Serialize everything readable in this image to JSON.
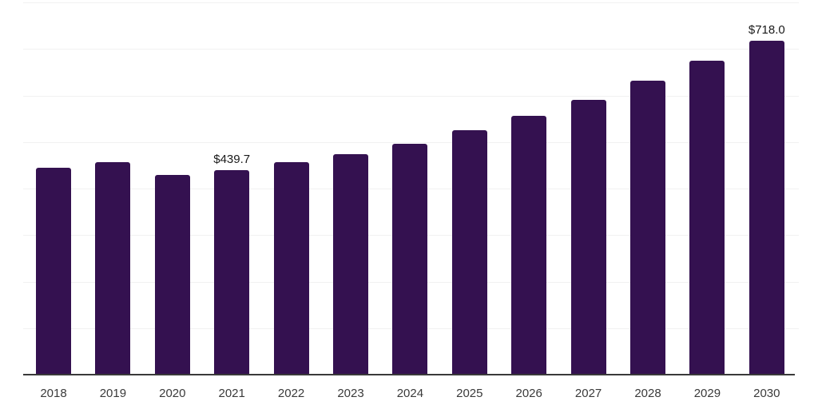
{
  "chart_data": {
    "type": "bar",
    "categories": [
      "2018",
      "2019",
      "2020",
      "2021",
      "2022",
      "2023",
      "2024",
      "2025",
      "2026",
      "2027",
      "2028",
      "2029",
      "2030"
    ],
    "values": [
      444.4,
      456.9,
      428.5,
      439.7,
      455.9,
      473.0,
      496.8,
      525.9,
      556.7,
      590.9,
      632.5,
      675.2,
      718.0
    ],
    "title": "",
    "xlabel": "",
    "ylabel": "",
    "ylim": [
      0,
      800
    ],
    "grid_step": 100,
    "grid": true,
    "legend": false,
    "y_tick_labels_visible": false,
    "data_labels": [
      {
        "category": "2021",
        "text": "$439.7"
      },
      {
        "category": "2030",
        "text": "$718.0"
      }
    ]
  },
  "colors": {
    "bar": "#341150",
    "gridline": "#f1f1f1",
    "axis_line": "#3a3a3a",
    "tick_label": "#3a3a3a",
    "data_label": "#1a1a1a",
    "background": "#ffffff"
  }
}
